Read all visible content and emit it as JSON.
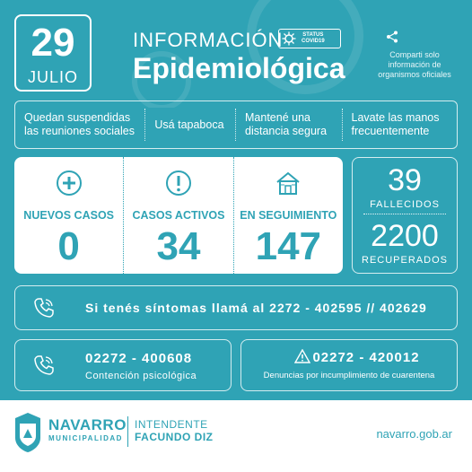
{
  "colors": {
    "brand": "#2fa3b5",
    "white": "#ffffff"
  },
  "header": {
    "day": "29",
    "month": "JULIO",
    "title_top": "INFORMACIÓN",
    "title_main": "Epidemiológica",
    "status_line1": "STATUS",
    "status_line2": "COVID19",
    "share_text": "Comparti solo información de organismos oficiales",
    "share_icon": "share-icon"
  },
  "advice": [
    "Quedan suspendidas las reuniones sociales",
    "Usá tapaboca",
    "Mantené una distancia segura",
    "Lavate las manos frecuentemente"
  ],
  "stats": [
    {
      "label": "NUEVOS CASOS",
      "value": "0",
      "icon": "plus-circle-icon"
    },
    {
      "label": "CASOS ACTIVOS",
      "value": "34",
      "icon": "exclamation-circle-icon"
    },
    {
      "label": "EN SEGUIMIENTO",
      "value": "147",
      "icon": "house-icon"
    }
  ],
  "outcomes": {
    "deaths_value": "39",
    "deaths_label": "FALLECIDOS",
    "recovered_value": "2200",
    "recovered_label": "RECUPERADOS"
  },
  "contact": {
    "symptoms_text": "Si tenés síntomas llamá al 2272 - 402595 // 402629",
    "psych_number": "02272 - 400608",
    "psych_label": "Contención psicológica",
    "report_number": "02272 - 420012",
    "report_label": "Denuncias por incumplimiento de cuarentena"
  },
  "footer": {
    "brand_name": "NAVARRO",
    "brand_sub": "MUNICIPALIDAD",
    "intendente_l1": "INTENDENTE",
    "intendente_l2": "FACUNDO DIZ",
    "website": "navarro.gob.ar"
  }
}
